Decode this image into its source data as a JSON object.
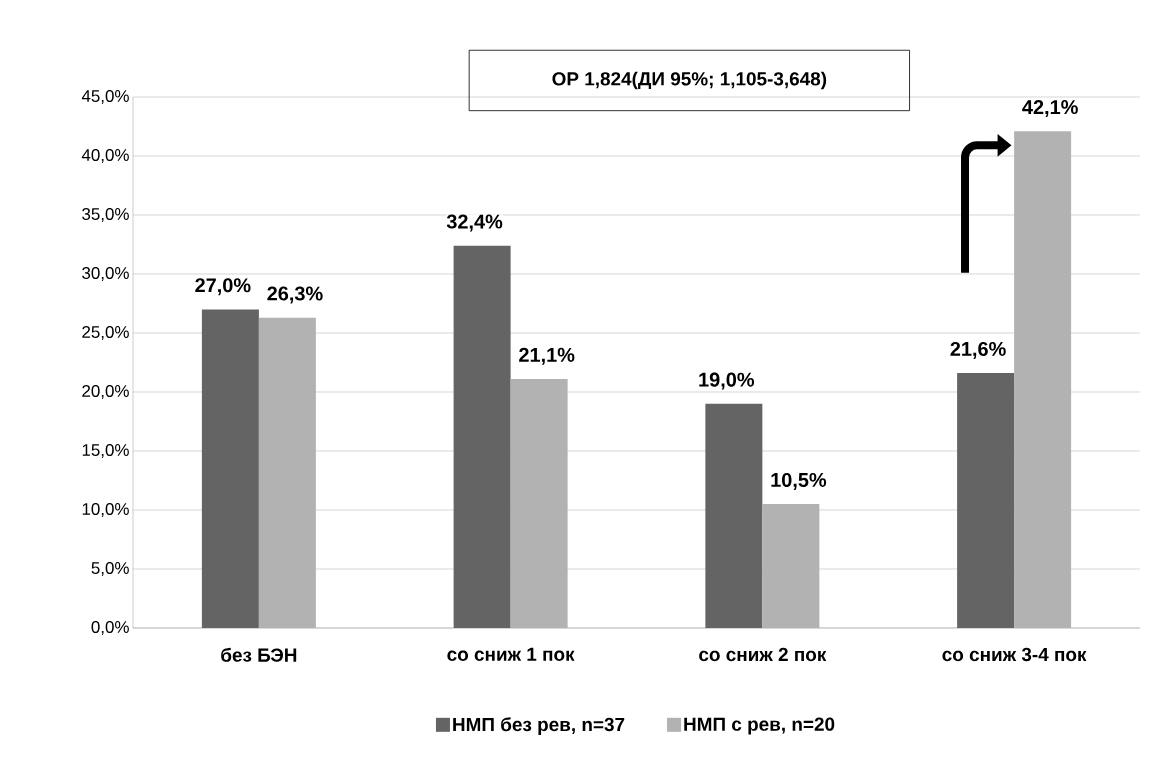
{
  "chart_data": {
    "type": "bar",
    "categories": [
      "без БЭН",
      "со сниж 1 пок",
      "со сниж 2 пок",
      "со сниж 3-4 пок"
    ],
    "series": [
      {
        "name": "НМП без рев, n=37",
        "color": "#646464",
        "values": [
          27.0,
          32.4,
          19.0,
          21.6
        ],
        "value_labels": [
          "27,0%",
          "32,4%",
          "19,0%",
          "21,6%"
        ]
      },
      {
        "name": "НМП с рев, n=20",
        "color": "#b2b2b2",
        "values": [
          26.3,
          21.1,
          10.5,
          42.1
        ],
        "value_labels": [
          "26,3%",
          "21,1%",
          "10,5%",
          "42,1%"
        ]
      }
    ],
    "ylim": [
      0,
      45
    ],
    "yticks": [
      {
        "value": 0,
        "label": "0,0%"
      },
      {
        "value": 5,
        "label": "5,0%"
      },
      {
        "value": 10,
        "label": "10,0%"
      },
      {
        "value": 15,
        "label": "15,0%"
      },
      {
        "value": 20,
        "label": "20,0%"
      },
      {
        "value": 25,
        "label": "25,0%"
      },
      {
        "value": 30,
        "label": "30,0%"
      },
      {
        "value": 35,
        "label": "35,0%"
      },
      {
        "value": 40,
        "label": "40,0%"
      },
      {
        "value": 45,
        "label": "45,0%"
      }
    ],
    "grid": "y",
    "legend": "bottom",
    "annotations": [
      "ОР 1,824(ДИ 95%; 1,105-3,648)"
    ]
  }
}
